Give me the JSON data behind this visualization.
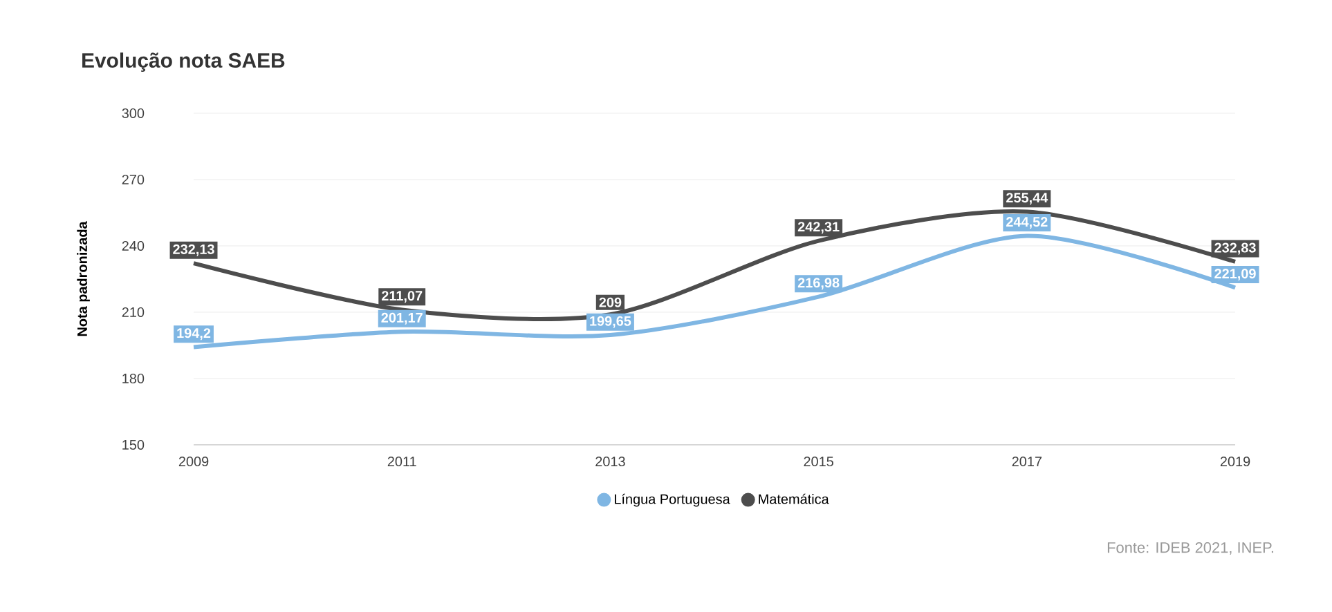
{
  "chart_data": {
    "type": "line",
    "title": "Evolução nota SAEB",
    "ylabel": "Nota padronizada",
    "x": [
      2009,
      2011,
      2013,
      2015,
      2017,
      2019
    ],
    "xlim": [
      2009,
      2019
    ],
    "xticks": [
      2009,
      2011,
      2013,
      2015,
      2017,
      2019
    ],
    "ylim": [
      150,
      300
    ],
    "yticks": [
      150,
      180,
      210,
      240,
      270,
      300
    ],
    "grid": "y",
    "legend": "bottom",
    "marker": "none",
    "line_style": "solid",
    "series": [
      {
        "name": "Língua Portuguesa",
        "color": "#7fb6e3",
        "values": [
          194.2,
          201.17,
          199.65,
          216.98,
          244.52,
          221.09
        ],
        "value_labels": [
          "194,2",
          "201,17",
          "199,65",
          "216,98",
          "244,52",
          "221,09"
        ]
      },
      {
        "name": "Matemática",
        "color": "#4d4d4d",
        "values": [
          232.13,
          211.07,
          209,
          242.31,
          255.44,
          232.83
        ],
        "value_labels": [
          "232,13",
          "211,07",
          "209",
          "242,31",
          "255,44",
          "232,83"
        ]
      }
    ],
    "annotations": [
      "Fonte: IDEB 2021, INEP."
    ]
  }
}
